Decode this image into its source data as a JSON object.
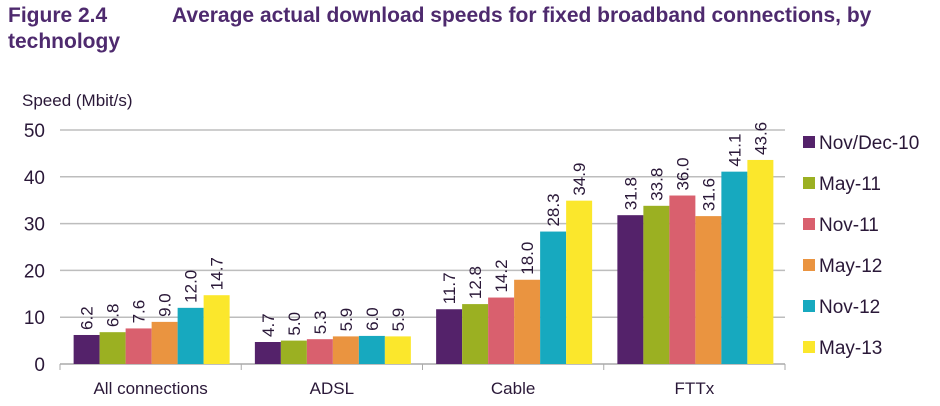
{
  "figure_label": "Figure 2.4",
  "chart_data": {
    "type": "bar",
    "title_line1": "Average actual download speeds for fixed broadband connections, by",
    "title_line2": "technology",
    "ylabel": "Speed (Mbit/s)",
    "xlabel": "",
    "ylim": [
      0,
      50
    ],
    "yticks": [
      0,
      10,
      20,
      30,
      40,
      50
    ],
    "grid": true,
    "legend_placement": "right",
    "categories": [
      "All connections",
      "ADSL",
      "Cable",
      "FTTx"
    ],
    "series": [
      {
        "name": "Nov/Dec-10",
        "color": "#54226a",
        "values": [
          6.2,
          4.7,
          11.7,
          31.8
        ]
      },
      {
        "name": "May-11",
        "color": "#9bb022",
        "values": [
          6.8,
          5.0,
          12.8,
          33.8
        ]
      },
      {
        "name": "Nov-11",
        "color": "#d9606e",
        "values": [
          7.6,
          5.3,
          14.2,
          36.0
        ]
      },
      {
        "name": "May-12",
        "color": "#ea9440",
        "values": [
          9.0,
          5.9,
          18.0,
          31.6
        ]
      },
      {
        "name": "Nov-12",
        "color": "#17a9bf",
        "values": [
          12.0,
          6.0,
          28.3,
          41.1
        ]
      },
      {
        "name": "May-13",
        "color": "#fbe72c",
        "values": [
          14.7,
          5.9,
          34.9,
          43.6
        ]
      }
    ]
  }
}
